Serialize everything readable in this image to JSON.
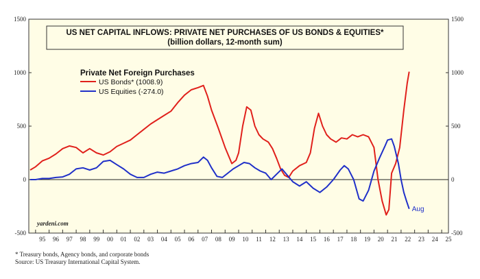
{
  "chart_data": {
    "type": "line",
    "title": "US NET CAPITAL INFLOWS: PRIVATE NET PURCHASES OF US BONDS & EQUITIES*",
    "subtitle": "(billion dollars, 12-month sum)",
    "legend_title": "Private Net Foreign Purchases",
    "legend_position": "top-left",
    "ylim": [
      -500,
      1500
    ],
    "yticks": [
      -500,
      0,
      500,
      1000,
      1500
    ],
    "xlim": [
      1994.5,
      2025.5
    ],
    "xtick_labels": [
      "95",
      "96",
      "97",
      "98",
      "99",
      "00",
      "01",
      "02",
      "03",
      "04",
      "05",
      "06",
      "07",
      "08",
      "09",
      "10",
      "11",
      "12",
      "13",
      "14",
      "15",
      "16",
      "17",
      "18",
      "19",
      "20",
      "21",
      "22",
      "23",
      "24",
      "25"
    ],
    "grid": false,
    "zero_line": true,
    "background": "#fffde6",
    "watermark": "yardeni.com",
    "annotations": [
      {
        "text": "Aug",
        "x": 2022.6,
        "y": -270
      }
    ],
    "series": [
      {
        "name": "US Bonds* (1008.9)",
        "color": "#e0201b",
        "points": [
          [
            1994.6,
            90
          ],
          [
            1995.0,
            120
          ],
          [
            1995.5,
            175
          ],
          [
            1996.0,
            200
          ],
          [
            1996.5,
            240
          ],
          [
            1997.0,
            290
          ],
          [
            1997.5,
            315
          ],
          [
            1998.0,
            300
          ],
          [
            1998.5,
            250
          ],
          [
            1999.0,
            290
          ],
          [
            1999.5,
            250
          ],
          [
            2000.0,
            230
          ],
          [
            2000.5,
            260
          ],
          [
            2001.0,
            310
          ],
          [
            2001.5,
            340
          ],
          [
            2002.0,
            370
          ],
          [
            2002.5,
            420
          ],
          [
            2003.0,
            470
          ],
          [
            2003.5,
            520
          ],
          [
            2004.0,
            560
          ],
          [
            2004.5,
            600
          ],
          [
            2005.0,
            640
          ],
          [
            2005.5,
            720
          ],
          [
            2006.0,
            790
          ],
          [
            2006.5,
            840
          ],
          [
            2007.0,
            860
          ],
          [
            2007.4,
            880
          ],
          [
            2007.7,
            780
          ],
          [
            2008.0,
            650
          ],
          [
            2008.5,
            480
          ],
          [
            2009.0,
            300
          ],
          [
            2009.5,
            150
          ],
          [
            2009.8,
            180
          ],
          [
            2010.0,
            250
          ],
          [
            2010.3,
            500
          ],
          [
            2010.6,
            680
          ],
          [
            2010.9,
            650
          ],
          [
            2011.2,
            500
          ],
          [
            2011.5,
            420
          ],
          [
            2011.8,
            380
          ],
          [
            2012.2,
            350
          ],
          [
            2012.5,
            290
          ],
          [
            2012.8,
            200
          ],
          [
            2013.1,
            100
          ],
          [
            2013.4,
            40
          ],
          [
            2013.7,
            20
          ],
          [
            2014.0,
            80
          ],
          [
            2014.5,
            130
          ],
          [
            2015.0,
            160
          ],
          [
            2015.3,
            250
          ],
          [
            2015.6,
            480
          ],
          [
            2015.9,
            620
          ],
          [
            2016.2,
            500
          ],
          [
            2016.5,
            420
          ],
          [
            2016.8,
            380
          ],
          [
            2017.2,
            350
          ],
          [
            2017.6,
            390
          ],
          [
            2018.0,
            380
          ],
          [
            2018.4,
            420
          ],
          [
            2018.8,
            400
          ],
          [
            2019.2,
            420
          ],
          [
            2019.6,
            400
          ],
          [
            2020.0,
            300
          ],
          [
            2020.3,
            0
          ],
          [
            2020.6,
            -200
          ],
          [
            2020.9,
            -330
          ],
          [
            2021.1,
            -280
          ],
          [
            2021.3,
            60
          ],
          [
            2021.6,
            150
          ],
          [
            2021.9,
            300
          ],
          [
            2022.2,
            650
          ],
          [
            2022.45,
            900
          ],
          [
            2022.6,
            1008.9
          ]
        ]
      },
      {
        "name": "US Equities (-274.0)",
        "color": "#1f2fc8",
        "points": [
          [
            1994.6,
            0
          ],
          [
            1995.0,
            0
          ],
          [
            1995.5,
            10
          ],
          [
            1996.0,
            10
          ],
          [
            1996.5,
            20
          ],
          [
            1997.0,
            25
          ],
          [
            1997.5,
            50
          ],
          [
            1998.0,
            100
          ],
          [
            1998.5,
            110
          ],
          [
            1999.0,
            90
          ],
          [
            1999.5,
            110
          ],
          [
            2000.0,
            170
          ],
          [
            2000.5,
            180
          ],
          [
            2001.0,
            140
          ],
          [
            2001.5,
            100
          ],
          [
            2002.0,
            50
          ],
          [
            2002.5,
            20
          ],
          [
            2003.0,
            20
          ],
          [
            2003.5,
            50
          ],
          [
            2004.0,
            70
          ],
          [
            2004.5,
            60
          ],
          [
            2005.0,
            80
          ],
          [
            2005.5,
            100
          ],
          [
            2006.0,
            130
          ],
          [
            2006.5,
            150
          ],
          [
            2007.0,
            160
          ],
          [
            2007.4,
            210
          ],
          [
            2007.7,
            180
          ],
          [
            2008.0,
            110
          ],
          [
            2008.4,
            30
          ],
          [
            2008.8,
            20
          ],
          [
            2009.2,
            60
          ],
          [
            2009.6,
            100
          ],
          [
            2010.0,
            130
          ],
          [
            2010.4,
            160
          ],
          [
            2010.8,
            150
          ],
          [
            2011.2,
            110
          ],
          [
            2011.6,
            80
          ],
          [
            2012.0,
            60
          ],
          [
            2012.4,
            0
          ],
          [
            2012.8,
            50
          ],
          [
            2013.2,
            100
          ],
          [
            2013.6,
            40
          ],
          [
            2014.0,
            -20
          ],
          [
            2014.5,
            -60
          ],
          [
            2015.0,
            -20
          ],
          [
            2015.5,
            -80
          ],
          [
            2016.0,
            -120
          ],
          [
            2016.5,
            -70
          ],
          [
            2017.0,
            0
          ],
          [
            2017.5,
            90
          ],
          [
            2017.8,
            130
          ],
          [
            2018.1,
            100
          ],
          [
            2018.5,
            0
          ],
          [
            2018.9,
            -180
          ],
          [
            2019.2,
            -200
          ],
          [
            2019.6,
            -100
          ],
          [
            2020.0,
            80
          ],
          [
            2020.4,
            200
          ],
          [
            2020.8,
            310
          ],
          [
            2021.0,
            370
          ],
          [
            2021.3,
            380
          ],
          [
            2021.5,
            310
          ],
          [
            2021.8,
            150
          ],
          [
            2022.0,
            0
          ],
          [
            2022.2,
            -120
          ],
          [
            2022.4,
            -200
          ],
          [
            2022.6,
            -274.0
          ]
        ]
      }
    ]
  },
  "footnotes": [
    "*  Treasury bonds, Agency bonds, and corporate bonds",
    "Source: US Treasury International Capital System."
  ]
}
